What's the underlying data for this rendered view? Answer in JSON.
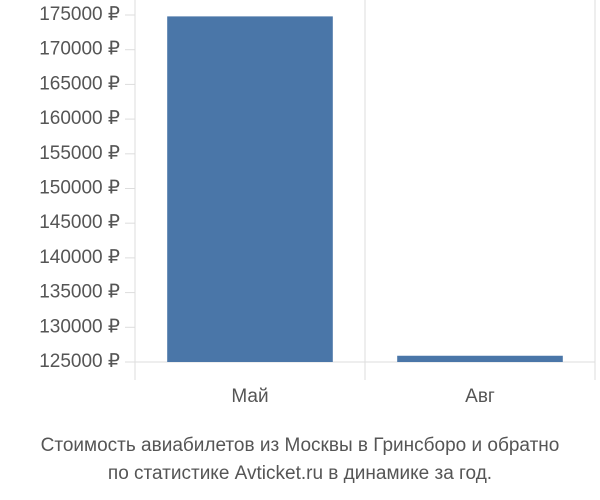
{
  "chart_data": {
    "type": "bar",
    "title": [
      "Стоимость авиабилетов из Москвы в Гринсборо и обратно",
      "по статистике Avticket.ru в динамике за год."
    ],
    "categories": [
      "Май",
      "Авг"
    ],
    "values": [
      174800,
      125900
    ],
    "color": "#4a76a8",
    "ylim": [
      125000,
      175000
    ],
    "yticks": [
      {
        "value": 125000,
        "label": "125000 ₽"
      },
      {
        "value": 130000,
        "label": "130000 ₽"
      },
      {
        "value": 135000,
        "label": "135000 ₽"
      },
      {
        "value": 140000,
        "label": "140000 ₽"
      },
      {
        "value": 145000,
        "label": "145000 ₽"
      },
      {
        "value": 150000,
        "label": "150000 ₽"
      },
      {
        "value": 155000,
        "label": "155000 ₽"
      },
      {
        "value": 160000,
        "label": "160000 ₽"
      },
      {
        "value": 165000,
        "label": "165000 ₽"
      },
      {
        "value": 170000,
        "label": "170000 ₽"
      },
      {
        "value": 175000,
        "label": "175000 ₽"
      }
    ]
  }
}
